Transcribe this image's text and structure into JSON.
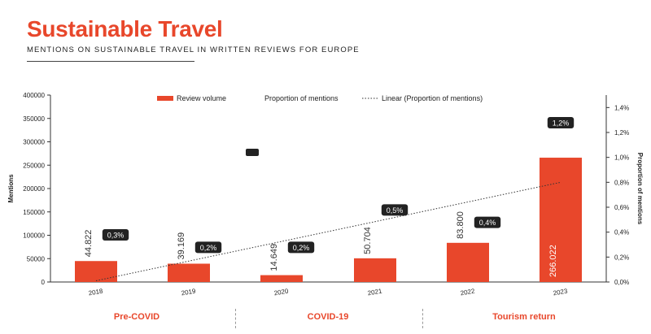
{
  "header": {
    "title": "Sustainable Travel",
    "subtitle": "MENTIONS ON SUSTAINABLE TRAVEL IN WRITTEN REVIEWS FOR EUROPE"
  },
  "colors": {
    "accent": "#e8472b",
    "label_bg": "#222222",
    "text": "#222222"
  },
  "chart_data": {
    "type": "bar",
    "categories": [
      "2018",
      "2019",
      "2020",
      "2021",
      "2022",
      "2023"
    ],
    "series": [
      {
        "name": "Review volume",
        "type": "bar",
        "axis": "left",
        "values": [
          44822,
          39169,
          14649,
          50704,
          83800,
          266022
        ],
        "labels": [
          "44.822",
          "39.169",
          "14.649",
          "50.704",
          "83.800",
          "266.022"
        ]
      },
      {
        "name": "Proportion of mentions",
        "type": "marker",
        "axis": "right",
        "values": [
          0.003,
          0.002,
          0.002,
          0.005,
          0.004,
          0.012
        ],
        "labels": [
          "0,3%",
          "0,2%",
          "0,2%",
          "0,5%",
          "0,4%",
          "1,2%"
        ]
      },
      {
        "name": "Linear (Proportion of mentions)",
        "type": "trendline",
        "axis": "right",
        "values": [
          0.0001,
          0.0016,
          0.0032,
          0.0048,
          0.0064,
          0.008
        ]
      }
    ],
    "ylabel": "Mentions",
    "y2label": "Proportion of mentions",
    "ylim": [
      0,
      400000
    ],
    "y2lim": [
      0,
      0.015
    ],
    "yticks": [
      "0",
      "50000",
      "100000",
      "150000",
      "200000",
      "250000",
      "300000",
      "350000",
      "400000"
    ],
    "y2ticks": [
      "0,0%",
      "0,2%",
      "0,4%",
      "0,6%",
      "0,8%",
      "1,0%",
      "1,2%",
      "1,4%"
    ],
    "legend_position": "top",
    "grid": false
  },
  "phases": [
    "Pre-COVID",
    "COVID-19",
    "Tourism return"
  ]
}
